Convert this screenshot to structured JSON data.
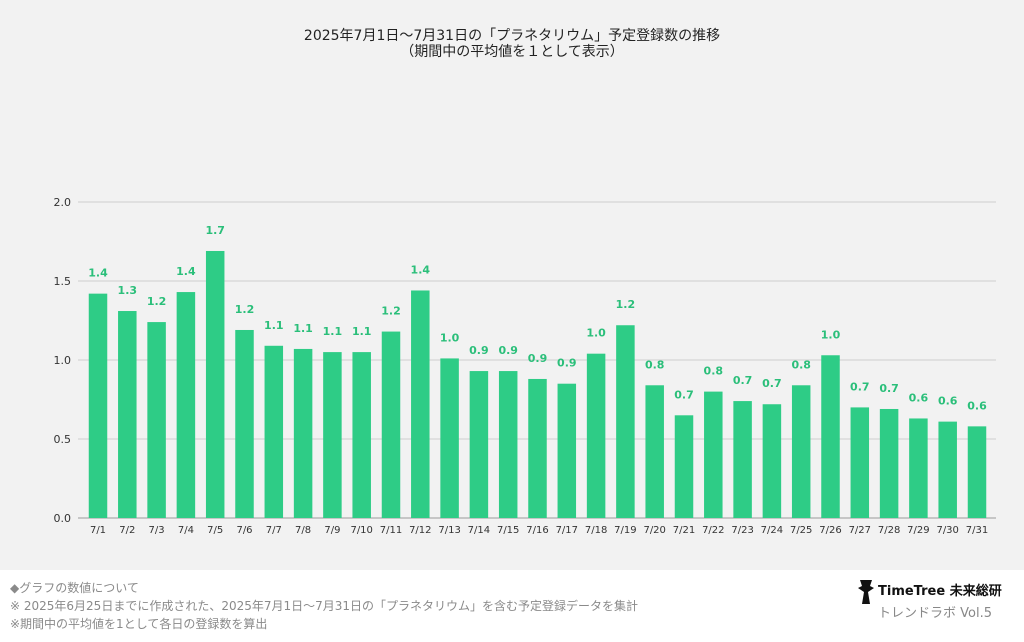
{
  "title": "2025年7月1日〜7月31日の「プラネタリウム」予定登録数の推移",
  "subtitle": "（期間中の平均値を１として表示）",
  "colors": {
    "bar": "#2ecc86",
    "label": "#2bbf7a",
    "grid": "#cfcfcf",
    "panel": "#f2f2f2"
  },
  "chart_data": {
    "type": "bar",
    "title": "2025年7月1日〜7月31日の「プラネタリウム」予定登録数の推移",
    "subtitle": "（期間中の平均値を１として表示）",
    "categories": [
      "7/1",
      "7/2",
      "7/3",
      "7/4",
      "7/5",
      "7/6",
      "7/7",
      "7/8",
      "7/9",
      "7/10",
      "7/11",
      "7/12",
      "7/13",
      "7/14",
      "7/15",
      "7/16",
      "7/17",
      "7/18",
      "7/19",
      "7/20",
      "7/21",
      "7/22",
      "7/23",
      "7/24",
      "7/25",
      "7/26",
      "7/27",
      "7/28",
      "7/29",
      "7/30",
      "7/31"
    ],
    "values": [
      1.42,
      1.31,
      1.24,
      1.43,
      1.69,
      1.19,
      1.09,
      1.07,
      1.05,
      1.05,
      1.18,
      1.44,
      1.01,
      0.93,
      0.93,
      0.88,
      0.85,
      1.04,
      1.22,
      0.84,
      0.65,
      0.8,
      0.74,
      0.72,
      0.84,
      1.03,
      0.7,
      0.69,
      0.63,
      0.61,
      0.58
    ],
    "data_labels": [
      "1.4",
      "1.3",
      "1.2",
      "1.4",
      "1.7",
      "1.2",
      "1.1",
      "1.1",
      "1.1",
      "1.1",
      "1.2",
      "1.4",
      "1.0",
      "0.9",
      "0.9",
      "0.9",
      "0.9",
      "1.0",
      "1.2",
      "0.8",
      "0.7",
      "0.8",
      "0.7",
      "0.7",
      "0.8",
      "1.0",
      "0.7",
      "0.7",
      "0.6",
      "0.6",
      "0.6"
    ],
    "yticks": [
      "0.0",
      "0.5",
      "1.0",
      "1.5",
      "2.0"
    ],
    "ylim": [
      0,
      2.0
    ],
    "grid": true,
    "legend": "none"
  },
  "footnotes": [
    "◆グラフの数値について",
    "※ 2025年6月25日までに作成された、2025年7月1日〜7月31日の「プラネタリウム」を含む予定登録データを集計",
    "※期間中の平均値を1として各日の登録数を算出"
  ],
  "brand": {
    "name": "TimeTree 未来総研",
    "sub": "トレンドラボ Vol.5",
    "logo_icon": "timetree-logo-icon"
  }
}
